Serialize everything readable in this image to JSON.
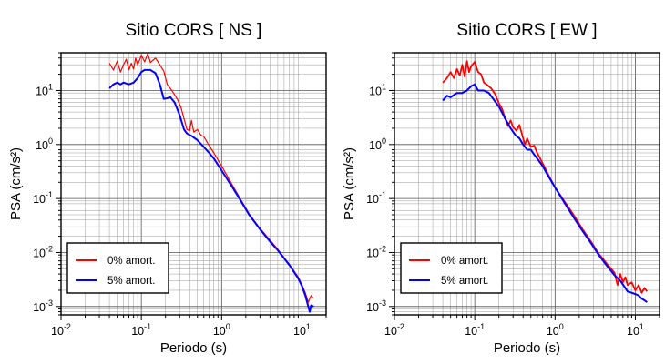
{
  "chart_data": [
    {
      "type": "line",
      "title": "Sitio CORS [ NS ]",
      "xlabel": "Periodo (s)",
      "ylabel": "PSA (cm/s²)",
      "x_scale": "log",
      "y_scale": "log",
      "xlim": [
        0.01,
        20
      ],
      "ylim": [
        0.0007,
        50
      ],
      "x_ticks": [
        {
          "base": "10",
          "exp": "-2",
          "value": 0.01
        },
        {
          "base": "10",
          "exp": "-1",
          "value": 0.1
        },
        {
          "base": "10",
          "exp": "0",
          "value": 1
        },
        {
          "base": "10",
          "exp": "1",
          "value": 10
        }
      ],
      "y_ticks": [
        {
          "base": "10",
          "exp": "-3",
          "value": 0.001
        },
        {
          "base": "10",
          "exp": "-2",
          "value": 0.01
        },
        {
          "base": "10",
          "exp": "-1",
          "value": 0.1
        },
        {
          "base": "10",
          "exp": "0",
          "value": 1
        },
        {
          "base": "10",
          "exp": "1",
          "value": 10
        }
      ],
      "grid": true,
      "legend_position": "bottom-left",
      "series": [
        {
          "name": "0% amort.",
          "color": "#ff0000",
          "points": [
            [
              0.04,
              32
            ],
            [
              0.045,
              24
            ],
            [
              0.05,
              35
            ],
            [
              0.055,
              22
            ],
            [
              0.06,
              30
            ],
            [
              0.065,
              38
            ],
            [
              0.07,
              24
            ],
            [
              0.075,
              32
            ],
            [
              0.08,
              25
            ],
            [
              0.085,
              40
            ],
            [
              0.09,
              30
            ],
            [
              0.1,
              45
            ],
            [
              0.11,
              34
            ],
            [
              0.12,
              48
            ],
            [
              0.13,
              33
            ],
            [
              0.15,
              40
            ],
            [
              0.17,
              30
            ],
            [
              0.19,
              23
            ],
            [
              0.21,
              13
            ],
            [
              0.24,
              10
            ],
            [
              0.28,
              7
            ],
            [
              0.31,
              5
            ],
            [
              0.34,
              3
            ],
            [
              0.37,
              1.9
            ],
            [
              0.4,
              1.8
            ],
            [
              0.42,
              2.8
            ],
            [
              0.45,
              1.7
            ],
            [
              0.5,
              1.9
            ],
            [
              0.55,
              1.5
            ],
            [
              0.6,
              1.4
            ],
            [
              0.7,
              0.95
            ],
            [
              0.8,
              0.7
            ],
            [
              1.0,
              0.4
            ],
            [
              1.3,
              0.2
            ],
            [
              1.7,
              0.1
            ],
            [
              2.2,
              0.052
            ],
            [
              3,
              0.028
            ],
            [
              4,
              0.017
            ],
            [
              5,
              0.0115
            ],
            [
              6,
              0.008
            ],
            [
              7,
              0.006
            ],
            [
              8,
              0.0045
            ],
            [
              9,
              0.0035
            ],
            [
              10,
              0.0025
            ],
            [
              11,
              0.0018
            ],
            [
              12,
              0.0012
            ],
            [
              13,
              0.0016
            ],
            [
              14,
              0.0014
            ]
          ]
        },
        {
          "name": "5% amort.",
          "color": "#0000ff",
          "points": [
            [
              0.04,
              11
            ],
            [
              0.045,
              13
            ],
            [
              0.05,
              14
            ],
            [
              0.055,
              13
            ],
            [
              0.06,
              14
            ],
            [
              0.07,
              13
            ],
            [
              0.08,
              14
            ],
            [
              0.09,
              17
            ],
            [
              0.1,
              22
            ],
            [
              0.11,
              24
            ],
            [
              0.13,
              24
            ],
            [
              0.15,
              21
            ],
            [
              0.17,
              13
            ],
            [
              0.19,
              7
            ],
            [
              0.21,
              7.2
            ],
            [
              0.23,
              7.5
            ],
            [
              0.26,
              6
            ],
            [
              0.3,
              3.5
            ],
            [
              0.34,
              1.9
            ],
            [
              0.37,
              1.6
            ],
            [
              0.42,
              1.45
            ],
            [
              0.5,
              1.2
            ],
            [
              0.6,
              0.9
            ],
            [
              0.7,
              0.7
            ],
            [
              0.8,
              0.55
            ],
            [
              1.0,
              0.33
            ],
            [
              1.3,
              0.18
            ],
            [
              1.7,
              0.095
            ],
            [
              2.2,
              0.05
            ],
            [
              3,
              0.027
            ],
            [
              4,
              0.016
            ],
            [
              5,
              0.011
            ],
            [
              6,
              0.0078
            ],
            [
              7,
              0.0058
            ],
            [
              8,
              0.0043
            ],
            [
              9,
              0.0033
            ],
            [
              10,
              0.0024
            ],
            [
              11,
              0.0016
            ],
            [
              12,
              0.001
            ],
            [
              12.5,
              0.0008
            ],
            [
              13,
              0.00105
            ],
            [
              14,
              0.001
            ]
          ]
        }
      ]
    },
    {
      "type": "line",
      "title": "Sitio CORS [ EW ]",
      "xlabel": "Periodo (s)",
      "ylabel": "PSA (cm/s²)",
      "x_scale": "log",
      "y_scale": "log",
      "xlim": [
        0.01,
        20
      ],
      "ylim": [
        0.0007,
        50
      ],
      "x_ticks": [
        {
          "base": "10",
          "exp": "-2",
          "value": 0.01
        },
        {
          "base": "10",
          "exp": "-1",
          "value": 0.1
        },
        {
          "base": "10",
          "exp": "0",
          "value": 1
        },
        {
          "base": "10",
          "exp": "1",
          "value": 10
        }
      ],
      "y_ticks": [
        {
          "base": "10",
          "exp": "-3",
          "value": 0.001
        },
        {
          "base": "10",
          "exp": "-2",
          "value": 0.01
        },
        {
          "base": "10",
          "exp": "-1",
          "value": 0.1
        },
        {
          "base": "10",
          "exp": "0",
          "value": 1
        },
        {
          "base": "10",
          "exp": "1",
          "value": 10
        }
      ],
      "grid": true,
      "legend_position": "bottom-left",
      "series": [
        {
          "name": "0% amort.",
          "color": "#ff0000",
          "points": [
            [
              0.04,
              14
            ],
            [
              0.045,
              17
            ],
            [
              0.05,
              22
            ],
            [
              0.055,
              17
            ],
            [
              0.06,
              25
            ],
            [
              0.065,
              19
            ],
            [
              0.07,
              30
            ],
            [
              0.075,
              18
            ],
            [
              0.08,
              35
            ],
            [
              0.085,
              22
            ],
            [
              0.09,
              28
            ],
            [
              0.1,
              34
            ],
            [
              0.11,
              22
            ],
            [
              0.12,
              20
            ],
            [
              0.13,
              14
            ],
            [
              0.14,
              13
            ],
            [
              0.16,
              11
            ],
            [
              0.18,
              8.5
            ],
            [
              0.2,
              5.8
            ],
            [
              0.22,
              4.5
            ],
            [
              0.24,
              3
            ],
            [
              0.26,
              2.2
            ],
            [
              0.28,
              2.8
            ],
            [
              0.3,
              2.1
            ],
            [
              0.33,
              1.8
            ],
            [
              0.36,
              2.3
            ],
            [
              0.39,
              1.5
            ],
            [
              0.42,
              1.0
            ],
            [
              0.45,
              1.3
            ],
            [
              0.5,
              0.9
            ],
            [
              0.55,
              0.95
            ],
            [
              0.6,
              0.7
            ],
            [
              0.7,
              0.45
            ],
            [
              0.8,
              0.3
            ],
            [
              1.0,
              0.16
            ],
            [
              1.3,
              0.09
            ],
            [
              1.7,
              0.05
            ],
            [
              2.2,
              0.027
            ],
            [
              2.8,
              0.016
            ],
            [
              3.5,
              0.0095
            ],
            [
              4,
              0.0075
            ],
            [
              4.5,
              0.006
            ],
            [
              5,
              0.005
            ],
            [
              5.5,
              0.0042
            ],
            [
              6,
              0.0025
            ],
            [
              6.5,
              0.004
            ],
            [
              7,
              0.0028
            ],
            [
              7.5,
              0.0035
            ],
            [
              8,
              0.0025
            ],
            [
              9,
              0.0028
            ],
            [
              10,
              0.002
            ],
            [
              11,
              0.0025
            ],
            [
              12,
              0.0018
            ],
            [
              13,
              0.0022
            ],
            [
              14,
              0.0019
            ]
          ]
        },
        {
          "name": "5% amort.",
          "color": "#0000ff",
          "points": [
            [
              0.04,
              6.5
            ],
            [
              0.045,
              8
            ],
            [
              0.05,
              7.5
            ],
            [
              0.06,
              9
            ],
            [
              0.07,
              9
            ],
            [
              0.08,
              10
            ],
            [
              0.09,
              12
            ],
            [
              0.1,
              13
            ],
            [
              0.11,
              10
            ],
            [
              0.13,
              10
            ],
            [
              0.15,
              9
            ],
            [
              0.17,
              7
            ],
            [
              0.2,
              5
            ],
            [
              0.24,
              3
            ],
            [
              0.28,
              2
            ],
            [
              0.32,
              1.5
            ],
            [
              0.36,
              1.3
            ],
            [
              0.4,
              1.0
            ],
            [
              0.45,
              0.8
            ],
            [
              0.5,
              0.8
            ],
            [
              0.55,
              0.65
            ],
            [
              0.6,
              0.55
            ],
            [
              0.7,
              0.4
            ],
            [
              0.8,
              0.28
            ],
            [
              1.0,
              0.16
            ],
            [
              1.3,
              0.085
            ],
            [
              1.7,
              0.045
            ],
            [
              2.2,
              0.025
            ],
            [
              2.8,
              0.015
            ],
            [
              3.5,
              0.009
            ],
            [
              4.5,
              0.0055
            ],
            [
              5.5,
              0.0038
            ],
            [
              6.5,
              0.003
            ],
            [
              7.5,
              0.0022
            ],
            [
              8,
              0.0019
            ],
            [
              9,
              0.0018
            ],
            [
              10,
              0.0017
            ],
            [
              11,
              0.0016
            ],
            [
              12,
              0.0014
            ],
            [
              13,
              0.0013
            ],
            [
              14,
              0.0012
            ]
          ]
        }
      ],
      "legend": [
        {
          "label": "0% amort.",
          "color": "#ff0000"
        },
        {
          "label": "5% amort.",
          "color": "#0000ff"
        }
      ]
    }
  ]
}
